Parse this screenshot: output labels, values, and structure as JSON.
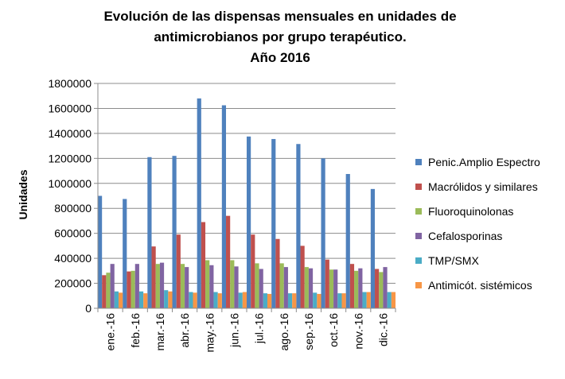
{
  "chart_data": {
    "type": "bar",
    "title_lines": [
      "Evolución de las dispensas  mensuales en unidades de",
      "antimicrobianos por grupo terapéutico.",
      "Año 2016"
    ],
    "xlabel": "",
    "ylabel": "Unidades",
    "ylim": [
      0,
      1800000
    ],
    "yticks": [
      "0",
      "200000",
      "400000",
      "600000",
      "800000",
      "1000000",
      "1200000",
      "1400000",
      "1600000",
      "1800000"
    ],
    "categories": [
      "ene.-16",
      "feb.-16",
      "mar.-16",
      "abr.-16",
      "may.-16",
      "jun.-16",
      "jul.-16",
      "ago.-16",
      "sep.-16",
      "oct.-16",
      "nov.-16",
      "dic.-16"
    ],
    "grid": true,
    "legend_position": "right",
    "series": [
      {
        "name": "Penic.Amplio Espectro",
        "color": "#4F81BD",
        "values": [
          900000,
          875000,
          1210000,
          1220000,
          1680000,
          1625000,
          1375000,
          1355000,
          1315000,
          1200000,
          1075000,
          955000
        ]
      },
      {
        "name": "Macrólidos y similares",
        "color": "#C0504D",
        "values": [
          265000,
          295000,
          495000,
          590000,
          690000,
          740000,
          590000,
          555000,
          500000,
          390000,
          355000,
          315000
        ]
      },
      {
        "name": "Fluoroquinolonas",
        "color": "#9BBB59",
        "values": [
          285000,
          300000,
          355000,
          355000,
          385000,
          385000,
          360000,
          360000,
          330000,
          310000,
          300000,
          290000
        ]
      },
      {
        "name": "Cefalosporinas",
        "color": "#8064A2",
        "values": [
          355000,
          355000,
          365000,
          330000,
          345000,
          335000,
          315000,
          330000,
          320000,
          310000,
          320000,
          330000
        ]
      },
      {
        "name": "TMP/SMX",
        "color": "#4BACC6",
        "values": [
          135000,
          135000,
          145000,
          130000,
          130000,
          125000,
          120000,
          120000,
          125000,
          120000,
          130000,
          130000
        ]
      },
      {
        "name": "Antimicót. sistémicos",
        "color": "#F79646",
        "values": [
          125000,
          120000,
          135000,
          125000,
          120000,
          130000,
          115000,
          120000,
          115000,
          120000,
          130000,
          130000
        ]
      }
    ]
  }
}
